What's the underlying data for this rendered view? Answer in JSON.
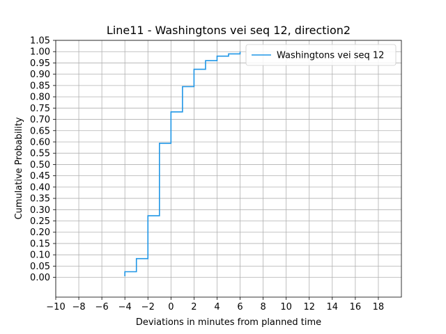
{
  "chart_data": {
    "type": "line",
    "step": "post",
    "title": "Line11 - Washingtons vei seq 12, direction2",
    "xlabel": "Deviations in minutes from planned time",
    "ylabel": "Cumulative Probability",
    "xlim": [
      -10,
      20
    ],
    "ylim": [
      -0.0875,
      1.05
    ],
    "xticks": [
      -10,
      -8,
      -6,
      -4,
      -2,
      0,
      2,
      4,
      6,
      8,
      10,
      12,
      14,
      16,
      18
    ],
    "xtick_labels": [
      "−10",
      "−8",
      "−6",
      "−4",
      "−2",
      "0",
      "2",
      "4",
      "6",
      "8",
      "10",
      "12",
      "14",
      "16",
      "18"
    ],
    "yticks": [
      0.0,
      0.05,
      0.1,
      0.15,
      0.2,
      0.25,
      0.3,
      0.35,
      0.4,
      0.45,
      0.5,
      0.55,
      0.6,
      0.65,
      0.7,
      0.75,
      0.8,
      0.85,
      0.9,
      0.95,
      1.0,
      1.05
    ],
    "ytick_labels": [
      "0.00",
      "0.05",
      "0.10",
      "0.15",
      "0.20",
      "0.25",
      "0.30",
      "0.35",
      "0.40",
      "0.45",
      "0.50",
      "0.55",
      "0.60",
      "0.65",
      "0.70",
      "0.75",
      "0.80",
      "0.85",
      "0.90",
      "0.95",
      "1.00",
      "1.05"
    ],
    "grid": true,
    "legend_position": "upper right",
    "series": [
      {
        "name": "Washingtons vei seq 12",
        "color": "#1f96e6",
        "x": [
          -4,
          -4,
          -3,
          -2,
          -1,
          0,
          1,
          2,
          3,
          4,
          5,
          6
        ],
        "y": [
          0.005,
          0.025,
          0.083,
          0.273,
          0.594,
          0.733,
          0.845,
          0.922,
          0.96,
          0.98,
          0.99,
          1.0
        ]
      }
    ]
  }
}
